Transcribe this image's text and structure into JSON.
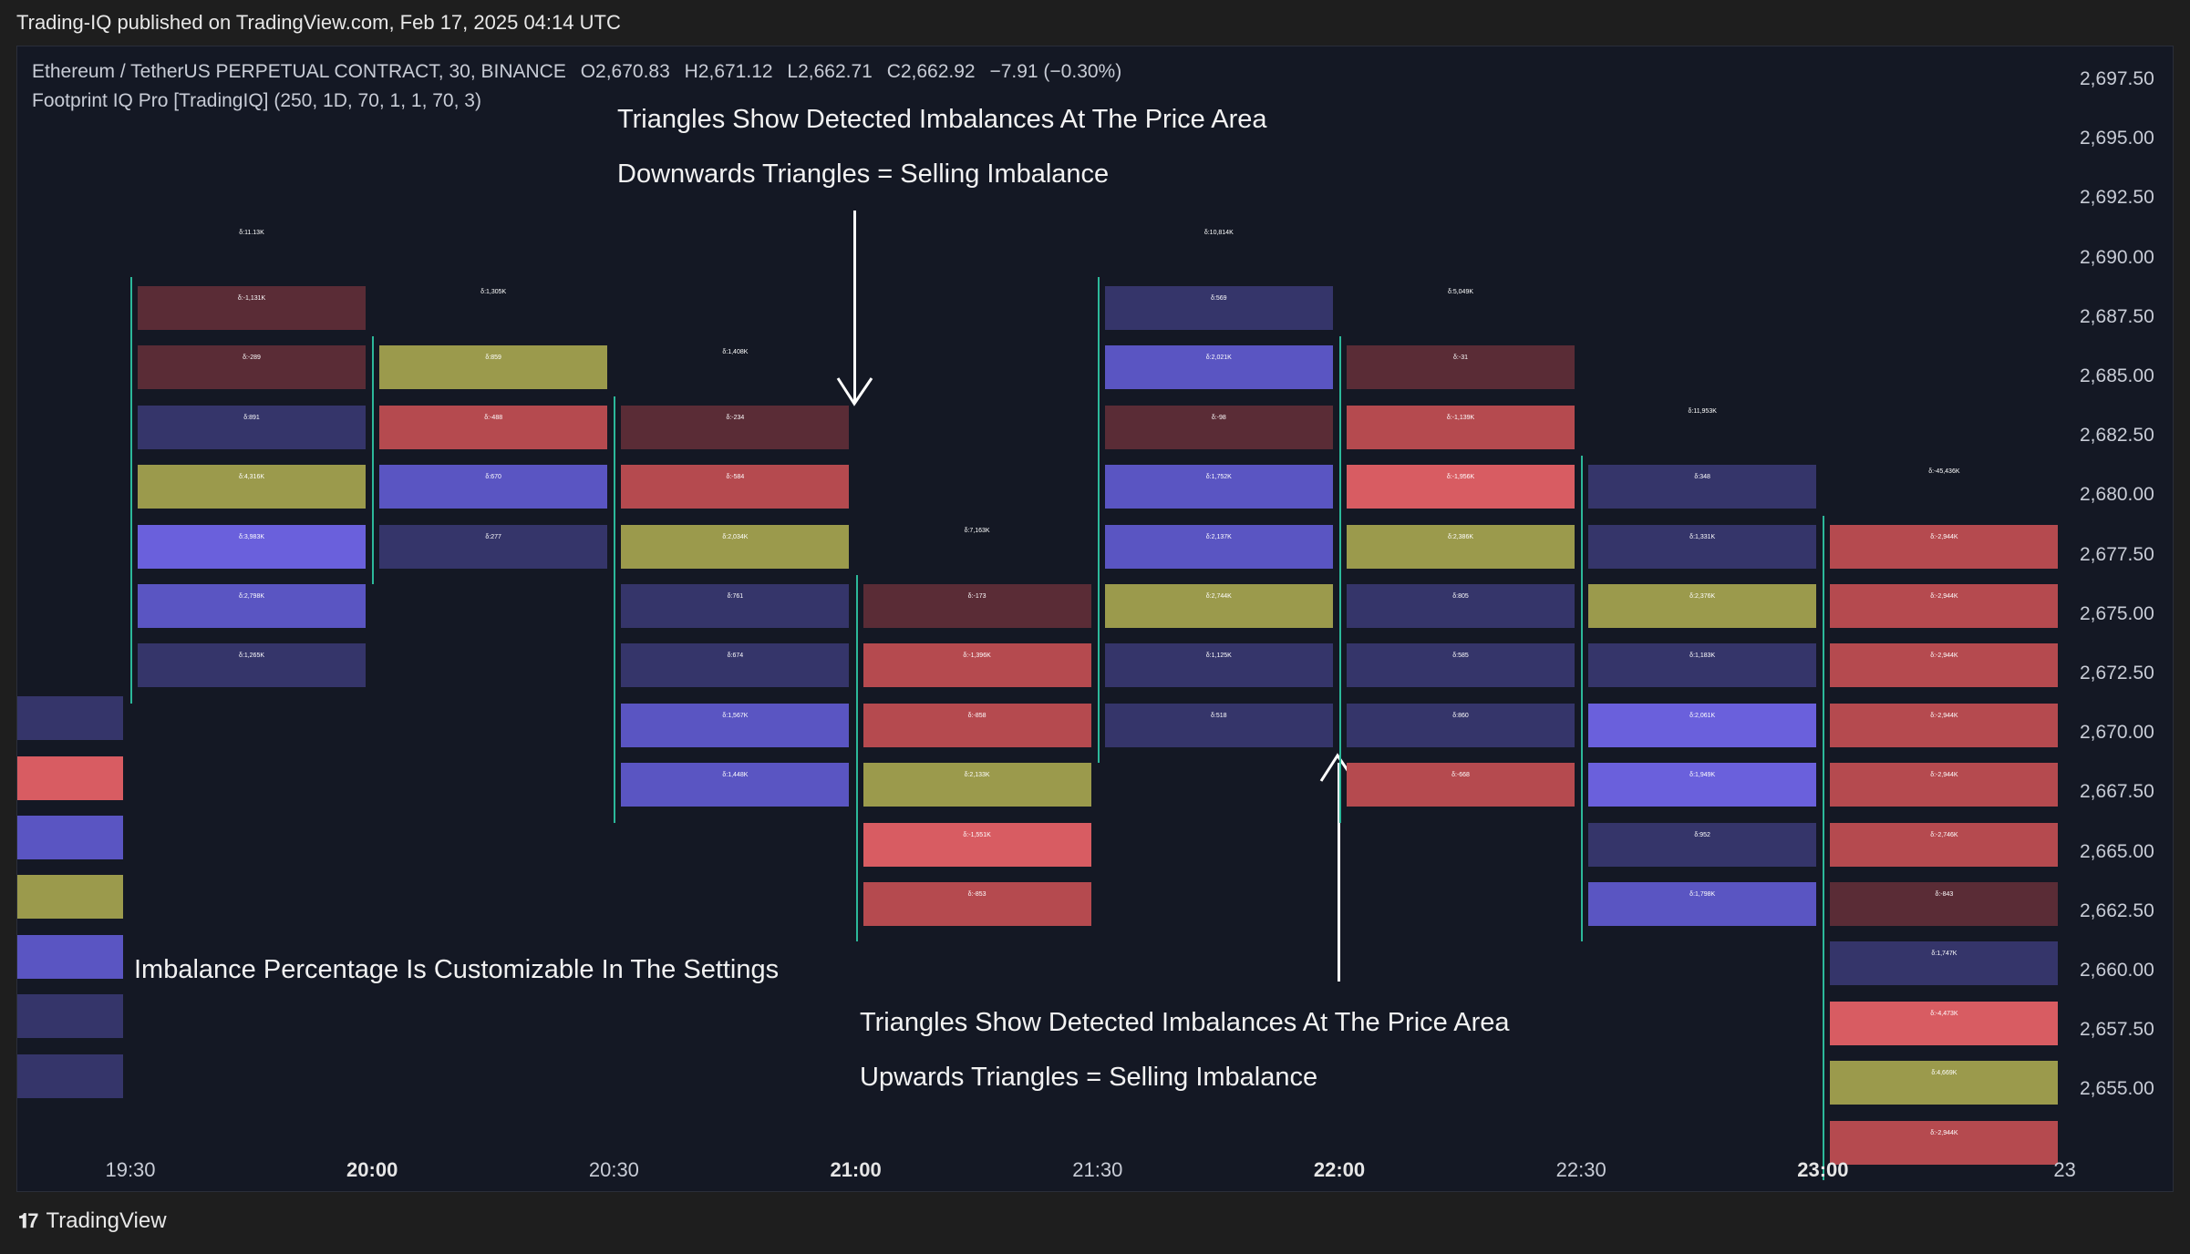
{
  "header": {
    "published": "Trading-IQ published on TradingView.com, Feb 17, 2025 04:14 UTC"
  },
  "symbol": {
    "name": "Ethereum / TetherUS PERPETUAL CONTRACT, 30, BINANCE",
    "open": "O2,670.83",
    "high": "H2,671.12",
    "low": "L2,662.71",
    "close": "C2,662.92",
    "change": "−7.91 (−0.30%)"
  },
  "indicator": {
    "label": "Footprint IQ Pro [TradingIQ] (250, 1D, 70, 1, 1, 70, 3)"
  },
  "annotations": {
    "top_title": "Triangles Show Detected Imbalances At The Price Area",
    "top_sub": "Downwards Triangles = Selling Imbalance",
    "left_note": "Imbalance Percentage Is Customizable In The Settings",
    "bottom_title": "Triangles Show Detected Imbalances At The Price Area",
    "bottom_sub": "Upwards Triangles = Selling Imbalance"
  },
  "price_axis": [
    "2,697.50",
    "2,695.00",
    "2,692.50",
    "2,690.00",
    "2,687.50",
    "2,685.00",
    "2,682.50",
    "2,680.00",
    "2,677.50",
    "2,675.00",
    "2,672.50",
    "2,670.00",
    "2,667.50",
    "2,665.00",
    "2,662.50",
    "2,660.00",
    "2,657.50",
    "2,655.00"
  ],
  "time_axis": [
    {
      "label": "19:30",
      "bold": false
    },
    {
      "label": "20:00",
      "bold": true
    },
    {
      "label": "20:30",
      "bold": false
    },
    {
      "label": "21:00",
      "bold": true
    },
    {
      "label": "21:30",
      "bold": false
    },
    {
      "label": "22:00",
      "bold": true
    },
    {
      "label": "22:30",
      "bold": false
    },
    {
      "label": "23:00",
      "bold": true
    },
    {
      "label": "23",
      "bold": false
    }
  ],
  "colors": {
    "red": "#b54a4f",
    "brightred": "#d85c62",
    "darkred": "#5a2c36",
    "olive": "#9b9a4c",
    "blue": "#5a55c2",
    "darkblue": "#35356a",
    "violet": "#6a60dc"
  },
  "footprint": [
    {
      "col": 0,
      "top": "δ:11.13K",
      "bars": [
        {
          "row": 6,
          "color": "darkred",
          "text": "δ:-1,131K"
        },
        {
          "row": 7,
          "color": "darkred",
          "text": "δ:-289"
        },
        {
          "row": 8,
          "color": "darkblue",
          "text": "δ:891"
        },
        {
          "row": 9,
          "color": "olive",
          "text": "δ:4,316K"
        },
        {
          "row": 10,
          "color": "violet",
          "text": "δ:3,983K"
        },
        {
          "row": 11,
          "color": "blue",
          "text": "δ:2,798K"
        },
        {
          "row": 12,
          "color": "darkblue",
          "text": "δ:1,265K"
        }
      ]
    },
    {
      "col": 1,
      "top": "δ:1,305K",
      "bars": [
        {
          "row": 7,
          "color": "olive",
          "text": "δ:859"
        },
        {
          "row": 8,
          "color": "red",
          "text": "δ:-488"
        },
        {
          "row": 9,
          "color": "blue",
          "text": "δ:670"
        },
        {
          "row": 10,
          "color": "darkblue",
          "text": "δ:277"
        }
      ]
    },
    {
      "col": 2,
      "top": "δ:1,408K",
      "bars": [
        {
          "row": 8,
          "color": "darkred",
          "text": "δ:-234"
        },
        {
          "row": 9,
          "color": "red",
          "text": "δ:-584"
        },
        {
          "row": 10,
          "color": "olive",
          "text": "δ:2,034K"
        },
        {
          "row": 11,
          "color": "darkblue",
          "text": "δ:761"
        },
        {
          "row": 12,
          "color": "darkblue",
          "text": "δ:674"
        },
        {
          "row": 13,
          "color": "blue",
          "text": "δ:1,567K"
        },
        {
          "row": 14,
          "color": "blue",
          "text": "δ:1,448K"
        }
      ]
    },
    {
      "col": 3,
      "top": "δ:7,163K",
      "bars": [
        {
          "row": 11,
          "color": "darkred",
          "text": "δ:-173"
        },
        {
          "row": 12,
          "color": "red",
          "text": "δ:-1,396K"
        },
        {
          "row": 13,
          "color": "red",
          "text": "δ:-858"
        },
        {
          "row": 14,
          "color": "olive",
          "text": "δ:2,133K"
        },
        {
          "row": 15,
          "color": "brightred",
          "text": "δ:-1,551K"
        },
        {
          "row": 16,
          "color": "red",
          "text": "δ:-853"
        }
      ]
    },
    {
      "col": 4,
      "top": "δ:10,814K",
      "bars": [
        {
          "row": 6,
          "color": "darkblue",
          "text": "δ:569"
        },
        {
          "row": 7,
          "color": "blue",
          "text": "δ:2,021K"
        },
        {
          "row": 8,
          "color": "darkred",
          "text": "δ:-98"
        },
        {
          "row": 9,
          "color": "blue",
          "text": "δ:1,752K"
        },
        {
          "row": 10,
          "color": "blue",
          "text": "δ:2,137K"
        },
        {
          "row": 11,
          "color": "olive",
          "text": "δ:2,744K"
        },
        {
          "row": 12,
          "color": "darkblue",
          "text": "δ:1,125K"
        },
        {
          "row": 13,
          "color": "darkblue",
          "text": "δ:518"
        }
      ]
    },
    {
      "col": 5,
      "top": "δ:5,049K",
      "bars": [
        {
          "row": 7,
          "color": "darkred",
          "text": "δ:-31"
        },
        {
          "row": 8,
          "color": "red",
          "text": "δ:-1,139K"
        },
        {
          "row": 9,
          "color": "brightred",
          "text": "δ:-1,956K"
        },
        {
          "row": 10,
          "color": "olive",
          "text": "δ:2,386K"
        },
        {
          "row": 11,
          "color": "darkblue",
          "text": "δ:805"
        },
        {
          "row": 12,
          "color": "darkblue",
          "text": "δ:585"
        },
        {
          "row": 13,
          "color": "darkblue",
          "text": "δ:860"
        },
        {
          "row": 14,
          "color": "red",
          "text": "δ:-668"
        }
      ]
    },
    {
      "col": 6,
      "top": "δ:11,953K",
      "bars": [
        {
          "row": 9,
          "color": "darkblue",
          "text": "δ:348"
        },
        {
          "row": 10,
          "color": "darkblue",
          "text": "δ:1,331K"
        },
        {
          "row": 11,
          "color": "olive",
          "text": "δ:2,376K"
        },
        {
          "row": 12,
          "color": "darkblue",
          "text": "δ:1,183K"
        },
        {
          "row": 13,
          "color": "violet",
          "text": "δ:2,061K"
        },
        {
          "row": 14,
          "color": "violet",
          "text": "δ:1,949K"
        },
        {
          "row": 15,
          "color": "darkblue",
          "text": "δ:952"
        },
        {
          "row": 16,
          "color": "blue",
          "text": "δ:1,798K"
        }
      ]
    },
    {
      "col": 7,
      "top": "δ:-45,436K",
      "bars": [
        {
          "row": 10,
          "color": "red",
          "text": "δ:-2,944K"
        },
        {
          "row": 11,
          "color": "red",
          "text": "δ:-2,944K"
        },
        {
          "row": 12,
          "color": "red",
          "text": "δ:-2,944K"
        },
        {
          "row": 13,
          "color": "red",
          "text": "δ:-2,944K"
        },
        {
          "row": 14,
          "color": "red",
          "text": "δ:-2,944K"
        },
        {
          "row": 15,
          "color": "red",
          "text": "δ:-2,746K"
        },
        {
          "row": 16,
          "color": "darkred",
          "text": "δ:-843"
        },
        {
          "row": 17,
          "color": "darkblue",
          "text": "δ:1,747K"
        },
        {
          "row": 18,
          "color": "brightred",
          "text": "δ:-4,473K"
        },
        {
          "row": 19,
          "color": "olive",
          "text": "δ:4,669K"
        },
        {
          "row": 20,
          "color": "red",
          "text": "δ:-2,944K"
        }
      ]
    }
  ],
  "partial_bars": [
    {
      "row": 8,
      "color": "darkblue"
    },
    {
      "row": 9,
      "color": "brightred"
    },
    {
      "row": 10,
      "color": "blue"
    },
    {
      "row": 11,
      "color": "olive"
    },
    {
      "row": 12,
      "color": "blue"
    },
    {
      "row": 13,
      "color": "darkblue"
    },
    {
      "row": 14,
      "color": "darkblue"
    }
  ],
  "brand": {
    "name": "TradingView",
    "logo": "tradingview-logo-icon"
  }
}
